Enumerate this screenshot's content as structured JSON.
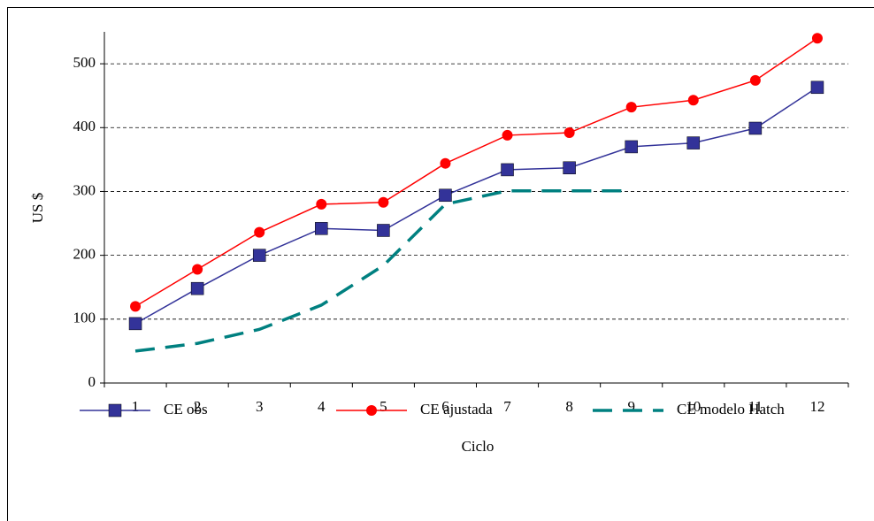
{
  "chart_data": {
    "type": "line",
    "x_label": "Ciclo",
    "y_label": "US $",
    "categories": [
      "1",
      "2",
      "3",
      "4",
      "5",
      "6",
      "7",
      "8",
      "9",
      "10",
      "11",
      "12"
    ],
    "series": [
      {
        "name": "CE obs",
        "color": "#333399",
        "marker": "square",
        "dashed": false,
        "values": [
          93,
          148,
          200,
          242,
          239,
          294,
          334,
          337,
          370,
          376,
          399,
          463
        ]
      },
      {
        "name": "CE ajustada",
        "color": "#ff0000",
        "marker": "circle",
        "dashed": false,
        "values": [
          120,
          178,
          236,
          280,
          283,
          344,
          388,
          392,
          432,
          443,
          474,
          540
        ]
      },
      {
        "name": "CE modelo Hatch",
        "color": "#008080",
        "marker": "none",
        "dashed": true,
        "values": [
          50,
          62,
          84,
          122,
          184,
          280,
          301,
          301,
          301,
          null,
          null,
          null
        ]
      }
    ],
    "ylim": [
      0,
      550
    ],
    "yticks": [
      0,
      100,
      200,
      300,
      400,
      500
    ],
    "grid": true,
    "legend": "bottom"
  }
}
